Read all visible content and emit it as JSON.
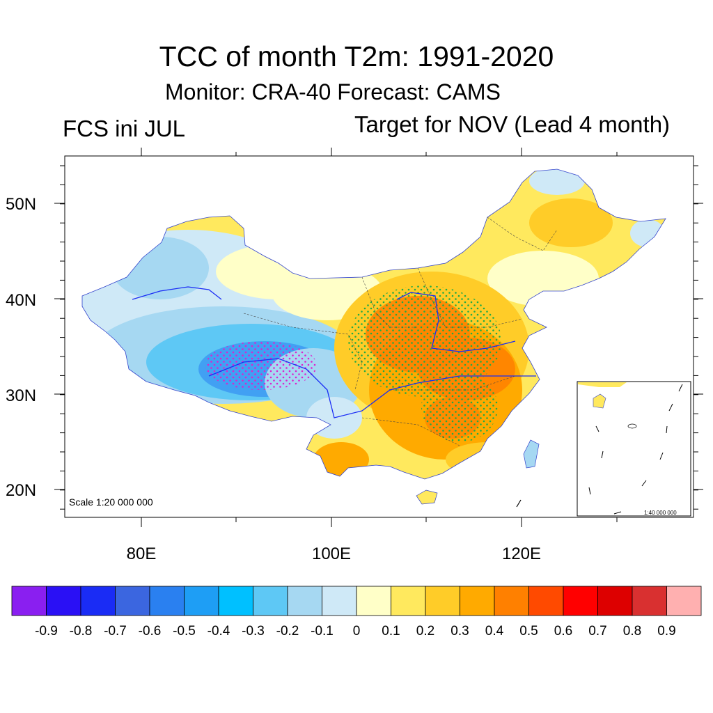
{
  "title": "TCC of month T2m: 1991-2020",
  "subtitle": "Monitor: CRA-40   Forecast: CAMS",
  "left_label": "FCS ini JUL",
  "right_label": "Target for NOV (Lead 4 month)",
  "scale_main": "Scale 1:20 000 000",
  "scale_inset": "1:40 000 000",
  "lat_labels": [
    "50N",
    "40N",
    "30N",
    "20N"
  ],
  "lon_labels": [
    "80E",
    "100E",
    "120E"
  ],
  "colorbar": {
    "colors": [
      "#8a1ff0",
      "#2a10f5",
      "#1a2cf5",
      "#3b66e0",
      "#2a80f0",
      "#1e9ef5",
      "#00c0ff",
      "#5ec8f5",
      "#a6d8f2",
      "#cfe9f7",
      "#ffffc8",
      "#ffe95e",
      "#ffcc28",
      "#ffaa00",
      "#ff8000",
      "#ff4a00",
      "#ff0000",
      "#dd0000",
      "#d93030",
      "#ffb0b0"
    ],
    "labels": [
      "-0.9",
      "-0.8",
      "-0.7",
      "-0.6",
      "-0.5",
      "-0.4",
      "-0.3",
      "-0.2",
      "-0.1",
      "0",
      "0.1",
      "0.2",
      "0.3",
      "0.4",
      "0.5",
      "0.6",
      "0.7",
      "0.8",
      "0.9"
    ]
  }
}
